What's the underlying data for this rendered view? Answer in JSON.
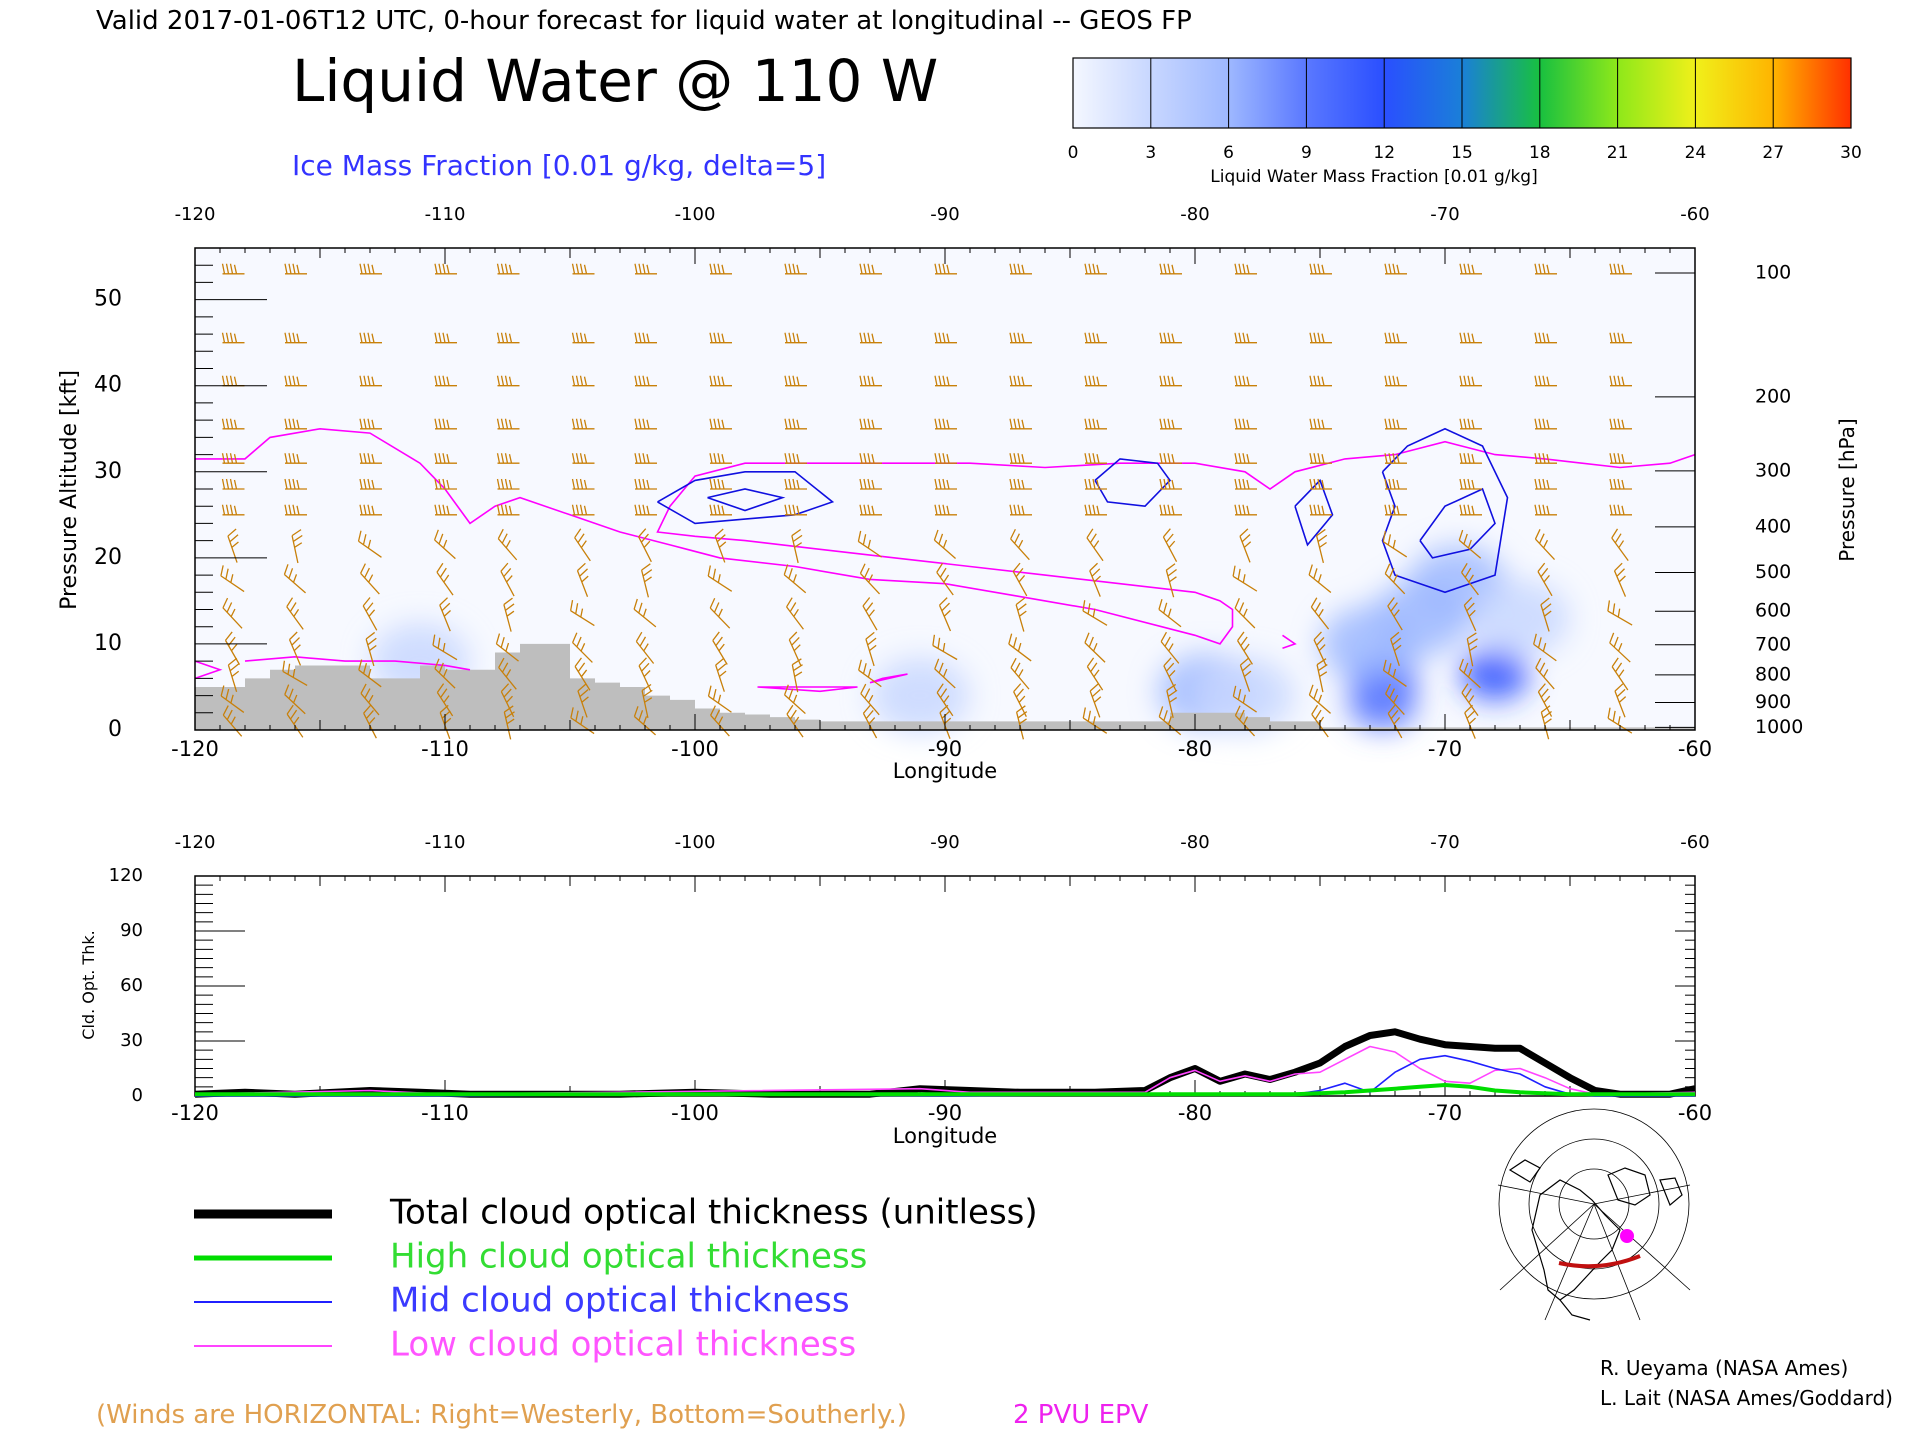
{
  "header": {
    "subtitle": "Valid 2017-01-06T12 UTC, 0-hour forecast for liquid water at longitudinal -- GEOS FP",
    "title": "Liquid Water @ 110 W",
    "ice_label": "Ice Mass Fraction [0.01 g/kg, delta=5]"
  },
  "colorbar": {
    "label": "Liquid Water Mass Fraction [0.01 g/kg]",
    "ticks": [
      "0",
      "3",
      "6",
      "9",
      "12",
      "15",
      "18",
      "21",
      "24",
      "27",
      "30"
    ],
    "colors": [
      "#f4f7ff",
      "#c8d7ff",
      "#9eb8ff",
      "#5a78ff",
      "#2a4fff",
      "#1a7fd8",
      "#18c040",
      "#8ee81a",
      "#f0f01a",
      "#ffb400",
      "#ff3000"
    ]
  },
  "chart_data": [
    {
      "type": "heatmap",
      "name": "liquid-water-cross-section",
      "xlabel": "Longitude",
      "ylabel": "Pressure Altitude [kft]",
      "y2label": "Pressure [hPa]",
      "xlim": [
        -120,
        -60
      ],
      "ylim": [
        0,
        56
      ],
      "x_ticks": [
        "-120",
        "-110",
        "-100",
        "-90",
        "-80",
        "-70",
        "-60"
      ],
      "y_ticks": [
        "0",
        "10",
        "20",
        "30",
        "40",
        "50"
      ],
      "pressure_ticks": [
        {
          "label": "100",
          "alt": 53.1
        },
        {
          "label": "200",
          "alt": 38.7
        },
        {
          "label": "300",
          "alt": 30.1
        },
        {
          "label": "400",
          "alt": 23.6
        },
        {
          "label": "500",
          "alt": 18.3
        },
        {
          "label": "600",
          "alt": 13.8
        },
        {
          "label": "700",
          "alt": 9.9
        },
        {
          "label": "800",
          "alt": 6.4
        },
        {
          "label": "900",
          "alt": 3.2
        },
        {
          "label": "1000",
          "alt": 0.3
        }
      ],
      "terrain": [
        [
          -120,
          5
        ],
        [
          -119,
          5
        ],
        [
          -118,
          6
        ],
        [
          -117,
          7
        ],
        [
          -116,
          7.5
        ],
        [
          -115,
          7.5
        ],
        [
          -114,
          7.5
        ],
        [
          -113,
          6
        ],
        [
          -112,
          6
        ],
        [
          -111,
          7.5
        ],
        [
          -110,
          7
        ],
        [
          -109,
          7
        ],
        [
          -108,
          9
        ],
        [
          -107,
          10
        ],
        [
          -106,
          10
        ],
        [
          -105,
          6
        ],
        [
          -104,
          5.5
        ],
        [
          -103,
          5
        ],
        [
          -102,
          4
        ],
        [
          -101,
          3.5
        ],
        [
          -100,
          2.5
        ],
        [
          -99,
          2
        ],
        [
          -98,
          1.8
        ],
        [
          -97,
          1.5
        ],
        [
          -96,
          1.2
        ],
        [
          -95,
          1
        ],
        [
          -94,
          1
        ],
        [
          -90,
          1
        ],
        [
          -85,
          1
        ],
        [
          -82,
          1
        ],
        [
          -81,
          2
        ],
        [
          -80,
          2
        ],
        [
          -79,
          2
        ],
        [
          -78,
          1.5
        ],
        [
          -77,
          1
        ],
        [
          -76,
          1
        ],
        [
          -75,
          0.3
        ],
        [
          -60,
          0.3
        ]
      ],
      "liquid_water": [
        {
          "lon": -72.5,
          "alt": 6,
          "value": 12
        },
        {
          "lon": -72.5,
          "alt": 3,
          "value": 9
        },
        {
          "lon": -73,
          "alt": 10,
          "value": 6
        },
        {
          "lon": -71,
          "alt": 13,
          "value": 6
        },
        {
          "lon": -69.5,
          "alt": 17,
          "value": 6
        },
        {
          "lon": -68,
          "alt": 6.5,
          "value": 12
        },
        {
          "lon": -67,
          "alt": 13,
          "value": 3
        },
        {
          "lon": -79.5,
          "alt": 4.5,
          "value": 6
        },
        {
          "lon": -78,
          "alt": 4,
          "value": 3
        },
        {
          "lon": -91,
          "alt": 4,
          "value": 3
        },
        {
          "lon": -111,
          "alt": 8,
          "value": 3
        }
      ],
      "ice_mass_contours": [
        {
          "level": 5,
          "points": [
            [
              -101.5,
              26.5
            ],
            [
              -100,
              29
            ],
            [
              -98,
              30
            ],
            [
              -96,
              30
            ],
            [
              -94.5,
              26.5
            ],
            [
              -96,
              25
            ],
            [
              -98,
              24.5
            ],
            [
              -100,
              24
            ],
            [
              -101.5,
              26.5
            ]
          ]
        },
        {
          "level": 10,
          "points": [
            [
              -99.5,
              27
            ],
            [
              -98,
              28
            ],
            [
              -96.5,
              27
            ],
            [
              -98,
              25.5
            ],
            [
              -99.5,
              27
            ]
          ]
        },
        {
          "level": 5,
          "points": [
            [
              -84,
              29
            ],
            [
              -83,
              31.5
            ],
            [
              -81.5,
              31
            ],
            [
              -81,
              29
            ],
            [
              -82,
              26
            ],
            [
              -83.5,
              26.5
            ],
            [
              -84,
              29
            ]
          ]
        },
        {
          "level": 5,
          "points": [
            [
              -76,
              26
            ],
            [
              -75,
              29
            ],
            [
              -74.5,
              25
            ],
            [
              -75.5,
              21.5
            ],
            [
              -76,
              26
            ]
          ]
        },
        {
          "level": 5,
          "points": [
            [
              -72.5,
              30
            ],
            [
              -71.5,
              33
            ],
            [
              -70,
              35
            ],
            [
              -68.5,
              33
            ],
            [
              -67.5,
              27
            ],
            [
              -68,
              18
            ],
            [
              -70,
              16
            ],
            [
              -72,
              18
            ],
            [
              -72.5,
              22
            ],
            [
              -72,
              26
            ],
            [
              -72.5,
              30
            ]
          ]
        },
        {
          "level": 10,
          "points": [
            [
              -71,
              22
            ],
            [
              -70,
              26
            ],
            [
              -68.5,
              28
            ],
            [
              -68,
              24
            ],
            [
              -69,
              21
            ],
            [
              -70.5,
              20
            ],
            [
              -71,
              22
            ]
          ]
        }
      ],
      "pv_2pvu": [
        [
          [
            -120,
            31.5
          ],
          [
            -118,
            31.5
          ],
          [
            -117,
            34
          ],
          [
            -115,
            35
          ],
          [
            -113,
            34.5
          ],
          [
            -111,
            31
          ],
          [
            -110,
            28
          ],
          [
            -109,
            24
          ],
          [
            -108,
            26
          ],
          [
            -107,
            27
          ],
          [
            -105,
            25
          ],
          [
            -103,
            23
          ],
          [
            -101,
            21.5
          ],
          [
            -99,
            20
          ],
          [
            -96,
            19
          ],
          [
            -93,
            17.5
          ],
          [
            -90,
            17
          ],
          [
            -87,
            15.5
          ],
          [
            -84,
            14
          ],
          [
            -80,
            11
          ],
          [
            -79,
            10
          ],
          [
            -78.5,
            12
          ],
          [
            -78.5,
            14
          ],
          [
            -79,
            15
          ],
          [
            -80,
            16
          ],
          [
            -83,
            17
          ],
          [
            -86,
            18
          ],
          [
            -89,
            19
          ],
          [
            -92,
            20
          ],
          [
            -95,
            21
          ],
          [
            -98,
            22
          ],
          [
            -100,
            22.5
          ],
          [
            -101.5,
            23
          ],
          [
            -101,
            26
          ],
          [
            -100,
            29.5
          ],
          [
            -98,
            31
          ],
          [
            -95,
            31
          ],
          [
            -92,
            31
          ],
          [
            -89,
            31
          ],
          [
            -86,
            30.5
          ],
          [
            -83,
            31
          ],
          [
            -80,
            31
          ],
          [
            -78,
            30
          ],
          [
            -77,
            28
          ],
          [
            -76,
            30
          ],
          [
            -74,
            31.5
          ],
          [
            -72,
            32
          ],
          [
            -70,
            33.5
          ],
          [
            -68,
            32
          ],
          [
            -66,
            31.5
          ],
          [
            -63,
            30.5
          ],
          [
            -61,
            31
          ],
          [
            -60,
            32
          ]
        ],
        [
          [
            -120,
            8
          ],
          [
            -119,
            7
          ],
          [
            -120,
            6
          ]
        ],
        [
          [
            -118,
            8
          ],
          [
            -116,
            8.5
          ],
          [
            -114,
            8
          ],
          [
            -112,
            8
          ],
          [
            -110,
            7.5
          ],
          [
            -109,
            7
          ]
        ],
        [
          [
            -97.5,
            5
          ],
          [
            -95,
            4.5
          ],
          [
            -93.5,
            5
          ],
          [
            -97.5,
            5
          ]
        ],
        [
          [
            -93,
            5.5
          ],
          [
            -91.5,
            6.5
          ],
          [
            -92.5,
            6
          ],
          [
            -93,
            5.5
          ]
        ],
        [
          [
            -76.5,
            11
          ],
          [
            -76,
            10
          ],
          [
            -76.5,
            9.5
          ]
        ]
      ],
      "wind_barb_lons": [
        -118.5,
        -116,
        -113,
        -110,
        -107.5,
        -104.5,
        -102,
        -99,
        -96,
        -93,
        -90,
        -87,
        -84,
        -81,
        -78,
        -75,
        -72,
        -69,
        -66,
        -63
      ],
      "wind_barb_levels": [
        53,
        45,
        40,
        35,
        31,
        28,
        25,
        21,
        17,
        13,
        9,
        6,
        3,
        0.5
      ]
    },
    {
      "type": "line",
      "name": "cloud-optical-thickness",
      "xlabel": "Longitude",
      "ylabel": "Cld. Opt. Thk.",
      "xlim": [
        -120,
        -60
      ],
      "ylim": [
        0,
        120
      ],
      "x_ticks": [
        "-120",
        "-110",
        "-100",
        "-90",
        "-80",
        "-70",
        "-60"
      ],
      "y_ticks": [
        "0",
        "30",
        "60",
        "90",
        "120"
      ],
      "series": [
        {
          "name": "Total cloud optical thickness (unitless)",
          "color": "#000000",
          "width": "thick",
          "x": [
            -120,
            -118,
            -116,
            -113,
            -111,
            -109,
            -106,
            -103,
            -100,
            -97,
            -93,
            -91,
            -89,
            -87,
            -84,
            -82,
            -81,
            -80,
            -79,
            -78,
            -77,
            -76,
            -75,
            -74,
            -73,
            -72,
            -71,
            -70,
            -69,
            -68,
            -67,
            -66,
            -65,
            -64,
            -63,
            -62,
            -61,
            -60
          ],
          "y": [
            1,
            2,
            1,
            3,
            2,
            1,
            1,
            1,
            2,
            1,
            1,
            4,
            3,
            2,
            2,
            3,
            10,
            15,
            8,
            12,
            9,
            13,
            18,
            27,
            33,
            35,
            31,
            28,
            27,
            26,
            26,
            18,
            10,
            3,
            1,
            1,
            1,
            4
          ]
        },
        {
          "name": "High cloud optical thickness",
          "color": "#00dd00",
          "width": "thick",
          "x": [
            -120,
            -110,
            -100,
            -95,
            -90,
            -85,
            -80,
            -76,
            -74,
            -72,
            -71,
            -70,
            -69,
            -68,
            -67,
            -65,
            -60
          ],
          "y": [
            1,
            1,
            1,
            1,
            1,
            1,
            1,
            1,
            2,
            4,
            5,
            6,
            5,
            3,
            2,
            1,
            1
          ]
        },
        {
          "name": "Mid cloud optical thickness",
          "color": "#2020ff",
          "width": "thin",
          "x": [
            -120,
            -110,
            -100,
            -90,
            -80,
            -76,
            -75,
            -74,
            -73,
            -72,
            -71,
            -70,
            -69,
            -68,
            -67,
            -66,
            -65,
            -64,
            -63,
            -60
          ],
          "y": [
            0,
            0,
            1,
            0,
            1,
            1,
            3,
            7,
            2,
            13,
            20,
            22,
            19,
            15,
            12,
            5,
            1,
            0,
            0,
            0
          ]
        },
        {
          "name": "Low cloud optical thickness",
          "color": "#ff44ff",
          "width": "thin",
          "x": [
            -120,
            -113,
            -110,
            -91,
            -89,
            -82,
            -81,
            -80,
            -79,
            -78,
            -77,
            -76,
            -75,
            -74,
            -73,
            -72,
            -71,
            -70,
            -69,
            -68,
            -67,
            -66,
            -65,
            -64,
            -60
          ],
          "y": [
            1,
            3,
            1,
            4,
            2,
            2,
            10,
            14,
            8,
            11,
            8,
            12,
            13,
            20,
            27,
            24,
            15,
            8,
            7,
            14,
            15,
            10,
            4,
            1,
            2
          ]
        }
      ]
    }
  ],
  "legend": {
    "items": [
      {
        "label": "Total cloud optical thickness (unitless)",
        "color": "#000000"
      },
      {
        "label": "High cloud optical thickness",
        "color": "#00dd00"
      },
      {
        "label": "Mid cloud optical thickness",
        "color": "#2020ff"
      },
      {
        "label": "Low cloud optical thickness",
        "color": "#ff44ff"
      }
    ]
  },
  "footer": {
    "winds_note": "(Winds are HORIZONTAL: Right=Westerly, Bottom=Southerly.)",
    "pv_label": "2 PVU EPV",
    "credit1": "R. Ueyama (NASA Ames)",
    "credit2": "L. Lait (NASA Ames/Goddard)"
  },
  "colors": {
    "wind_barbs": "#c8800a",
    "ice_contour": "#1010e0",
    "pv_line": "#ff00ff",
    "terrain": "#bebebe",
    "map_track": "#c01010",
    "map_marker": "#ff00ff"
  }
}
